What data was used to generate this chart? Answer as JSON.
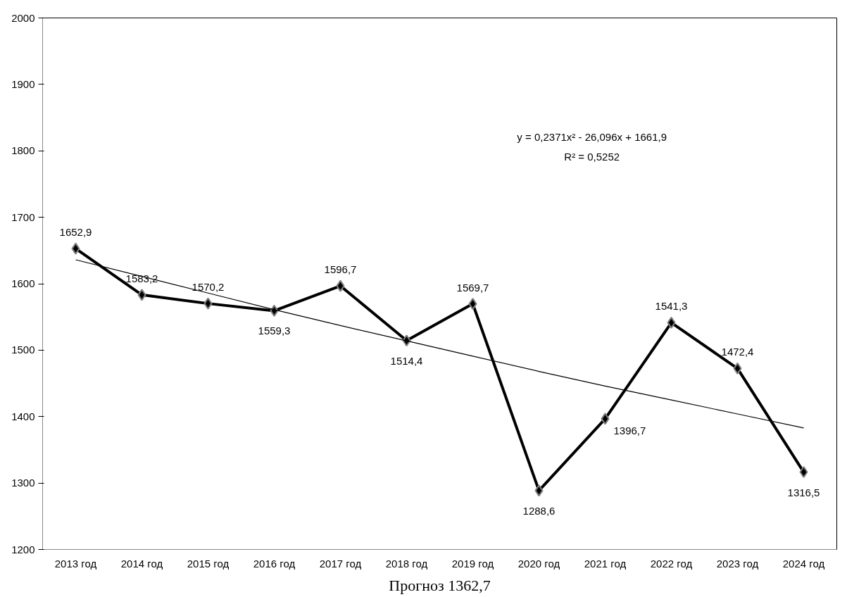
{
  "chart_data": {
    "type": "line",
    "categories": [
      "2013 год",
      "2014 год",
      "2015 год",
      "2016 год",
      "2017 год",
      "2018 год",
      "2019 год",
      "2020 год",
      "2021 год",
      "2022 год",
      "2023 год",
      "2024 год"
    ],
    "series": [
      {
        "color": "#000000",
        "values": [
          1652.9,
          1583.2,
          1570.2,
          1559.3,
          1596.7,
          1514.4,
          1569.7,
          1288.6,
          1396.7,
          1541.3,
          1472.4,
          1316.5
        ],
        "value_labels": [
          "1652,9",
          "1583,2",
          "1570,2",
          "1559,3",
          "1596,7",
          "1514,4",
          "1569,7",
          "1288,6",
          "1396,7",
          "1541,3",
          "1472,4",
          "1316,5"
        ],
        "marker": "diamond",
        "line_style": "solid"
      },
      {
        "type": "line",
        "color": "#000000",
        "values": [
          1636,
          1611,
          1586,
          1561,
          1537,
          1514,
          1491,
          1468,
          1446,
          1425,
          1404,
          1383
        ],
        "marker": "none",
        "line_style": "solid"
      }
    ],
    "ylim": [
      1200,
      2000
    ],
    "yticks": [
      1200,
      1300,
      1400,
      1500,
      1600,
      1700,
      1800,
      1900,
      2000
    ],
    "grid": false,
    "annotations": [
      "y = 0,2371x² - 26,096x + 1661,9",
      "R² = 0,5252",
      "Прогноз 1362,7"
    ]
  }
}
